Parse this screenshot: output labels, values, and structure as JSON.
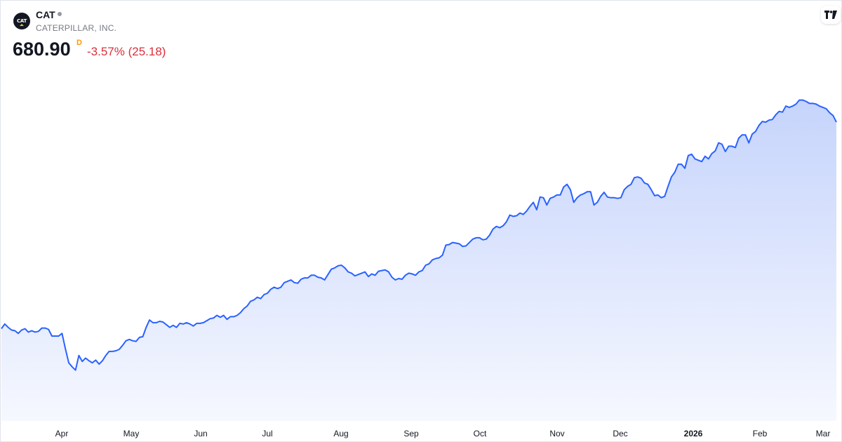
{
  "header": {
    "ticker": "CAT",
    "logo_text": "CAT",
    "company": "CATERPILLAR, INC.",
    "price": "680.90",
    "price_suffix": "D",
    "change": "-3.57% (25.18)"
  },
  "colors": {
    "line": "#2962ff",
    "fill_top": "#c6d4fc",
    "fill_bottom": "#f6f8ff",
    "negative": "#dc2f3b",
    "suffix": "#ff9800"
  },
  "chart_data": {
    "type": "area",
    "x_tick_labels": [
      {
        "label": "Apr",
        "bold": false
      },
      {
        "label": "May",
        "bold": false
      },
      {
        "label": "Jun",
        "bold": false
      },
      {
        "label": "Jul",
        "bold": false
      },
      {
        "label": "Aug",
        "bold": false
      },
      {
        "label": "Sep",
        "bold": false
      },
      {
        "label": "Oct",
        "bold": false
      },
      {
        "label": "Nov",
        "bold": false
      },
      {
        "label": "Dec",
        "bold": false
      },
      {
        "label": "2026",
        "bold": true
      },
      {
        "label": "Feb",
        "bold": false
      },
      {
        "label": "Mar",
        "bold": false
      }
    ],
    "y_axis_visible": false,
    "grid": false,
    "ylim": [
      240,
      770
    ],
    "series": [
      {
        "values": [
          378,
          385,
          380,
          376,
          375,
          371,
          376,
          378,
          373,
          375,
          373,
          374,
          379,
          379,
          377,
          367,
          367,
          367,
          371,
          348,
          327,
          321,
          316,
          338,
          329,
          334,
          330,
          327,
          331,
          325,
          330,
          338,
          344,
          344,
          345,
          347,
          353,
          360,
          362,
          360,
          359,
          365,
          366,
          380,
          391,
          387,
          387,
          389,
          388,
          384,
          380,
          383,
          380,
          386,
          385,
          387,
          385,
          382,
          386,
          386,
          387,
          390,
          393,
          394,
          398,
          395,
          398,
          392,
          396,
          396,
          398,
          402,
          408,
          412,
          419,
          421,
          425,
          423,
          429,
          431,
          437,
          440,
          438,
          440,
          447,
          449,
          451,
          447,
          446,
          452,
          454,
          454,
          458,
          458,
          455,
          454,
          451,
          459,
          467,
          469,
          472,
          473,
          469,
          463,
          461,
          457,
          459,
          461,
          463,
          456,
          460,
          458,
          464,
          465,
          466,
          463,
          455,
          451,
          453,
          452,
          458,
          461,
          460,
          458,
          463,
          465,
          473,
          475,
          481,
          483,
          484,
          488,
          503,
          504,
          507,
          506,
          505,
          501,
          502,
          507,
          512,
          514,
          514,
          511,
          512,
          518,
          527,
          531,
          529,
          532,
          538,
          548,
          546,
          547,
          551,
          549,
          554,
          561,
          567,
          556,
          575,
          574,
          563,
          573,
          575,
          578,
          578,
          590,
          594,
          586,
          567,
          574,
          578,
          580,
          583,
          583,
          563,
          567,
          576,
          582,
          575,
          574,
          574,
          573,
          574,
          586,
          591,
          594,
          604,
          605,
          603,
          596,
          594,
          586,
          577,
          578,
          574,
          576,
          591,
          605,
          612,
          624,
          624,
          618,
          637,
          639,
          632,
          630,
          628,
          636,
          632,
          640,
          644,
          656,
          654,
          643,
          651,
          651,
          649,
          663,
          668,
          668,
          656,
          669,
          673,
          682,
          688,
          687,
          690,
          691,
          698,
          703,
          702,
          711,
          709,
          711,
          714,
          720,
          720,
          718,
          715,
          715,
          714,
          711,
          709,
          707,
          701,
          697,
          687
        ],
        "_note_points": "approx daily closes; read visually"
      }
    ]
  }
}
